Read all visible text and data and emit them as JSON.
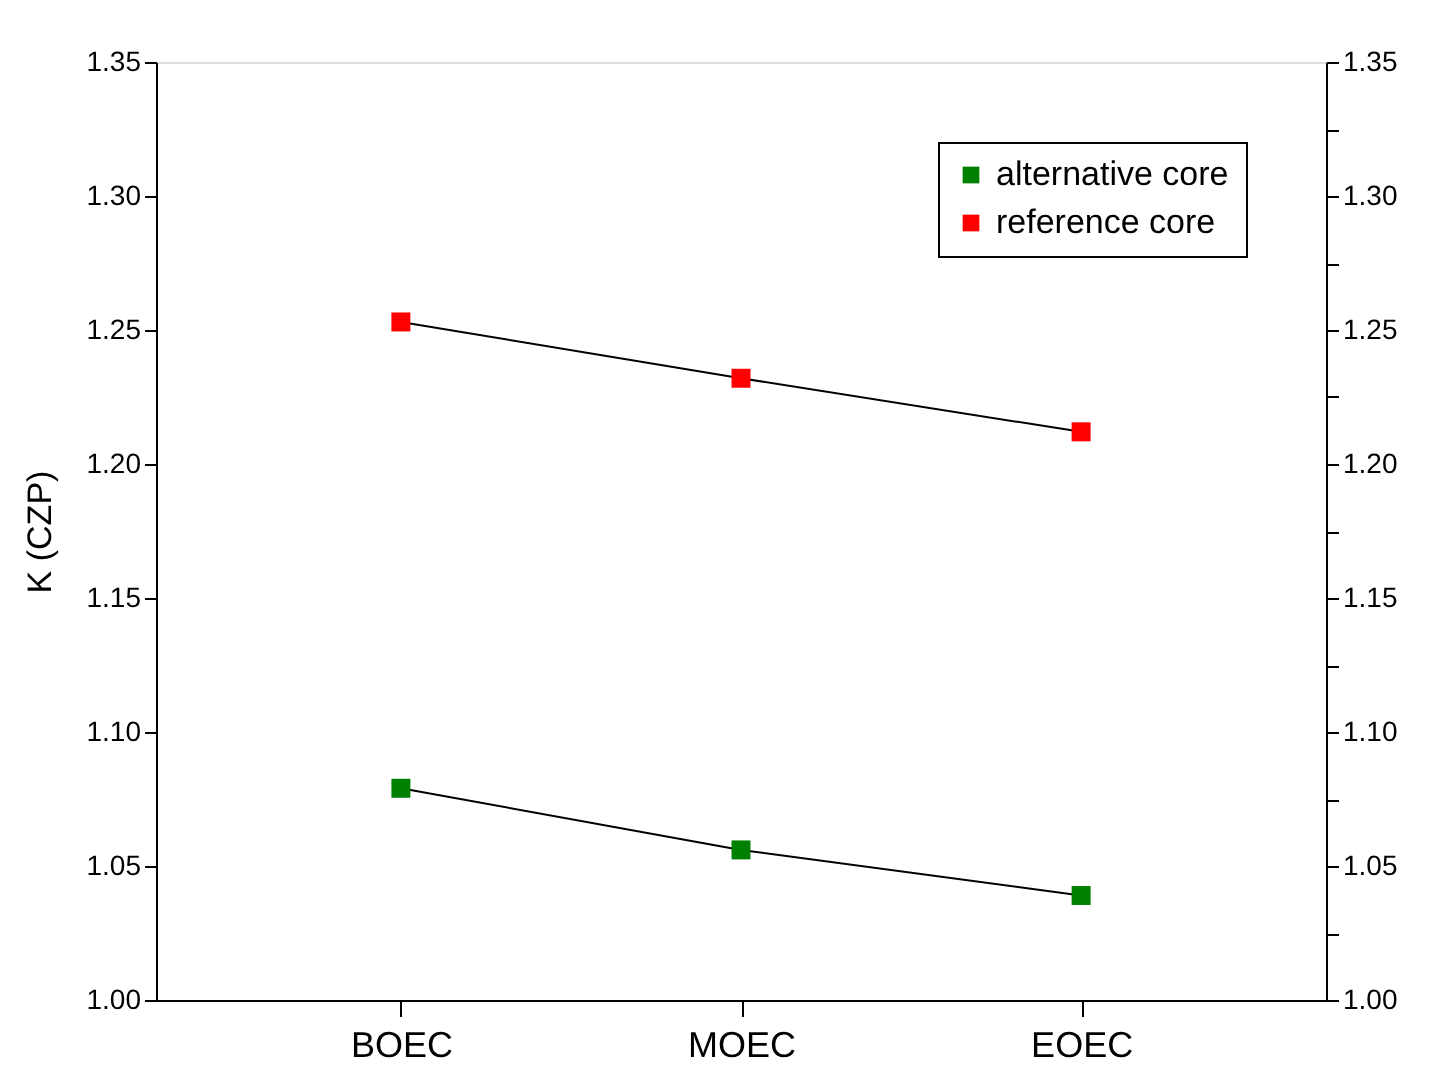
{
  "chart_data": {
    "type": "line",
    "ylabel": "K (CZP)",
    "categories": [
      "BOEC",
      "MOEC",
      "EOEC"
    ],
    "series": [
      {
        "name": "alternative core",
        "color": "#008000",
        "values": [
          1.079,
          1.056,
          1.039
        ]
      },
      {
        "name": "reference core",
        "color": "#ff0000",
        "values": [
          1.253,
          1.232,
          1.212
        ]
      }
    ],
    "ylim": [
      1.0,
      1.35
    ],
    "yticks": [
      {
        "value": 1.0,
        "label": "1.00"
      },
      {
        "value": 1.025,
        "label": null
      },
      {
        "value": 1.05,
        "label": "1.05"
      },
      {
        "value": 1.075,
        "label": null
      },
      {
        "value": 1.1,
        "label": "1.10"
      },
      {
        "value": 1.125,
        "label": null
      },
      {
        "value": 1.15,
        "label": "1.15"
      },
      {
        "value": 1.175,
        "label": null
      },
      {
        "value": 1.2,
        "label": "1.20"
      },
      {
        "value": 1.225,
        "label": null
      },
      {
        "value": 1.25,
        "label": "1.25"
      },
      {
        "value": 1.275,
        "label": null
      },
      {
        "value": 1.3,
        "label": "1.30"
      },
      {
        "value": 1.325,
        "label": null
      },
      {
        "value": 1.35,
        "label": "1.35"
      }
    ],
    "y2lim": [
      1.0,
      1.35
    ],
    "y2ticks": [
      {
        "value": 1.0,
        "label": "1.00"
      },
      {
        "value": 1.025,
        "label": null
      },
      {
        "value": 1.05,
        "label": "1.05"
      },
      {
        "value": 1.075,
        "label": null
      },
      {
        "value": 1.1,
        "label": "1.10"
      },
      {
        "value": 1.125,
        "label": null
      },
      {
        "value": 1.15,
        "label": "1.15"
      },
      {
        "value": 1.175,
        "label": null
      },
      {
        "value": 1.2,
        "label": "1.20"
      },
      {
        "value": 1.225,
        "label": null
      },
      {
        "value": 1.25,
        "label": "1.25"
      },
      {
        "value": 1.275,
        "label": null
      },
      {
        "value": 1.3,
        "label": "1.30"
      },
      {
        "value": 1.325,
        "label": null
      },
      {
        "value": 1.35,
        "label": "1.35"
      }
    ],
    "legend": "top right",
    "marker": "square",
    "line_style": "solid",
    "grid": false
  }
}
